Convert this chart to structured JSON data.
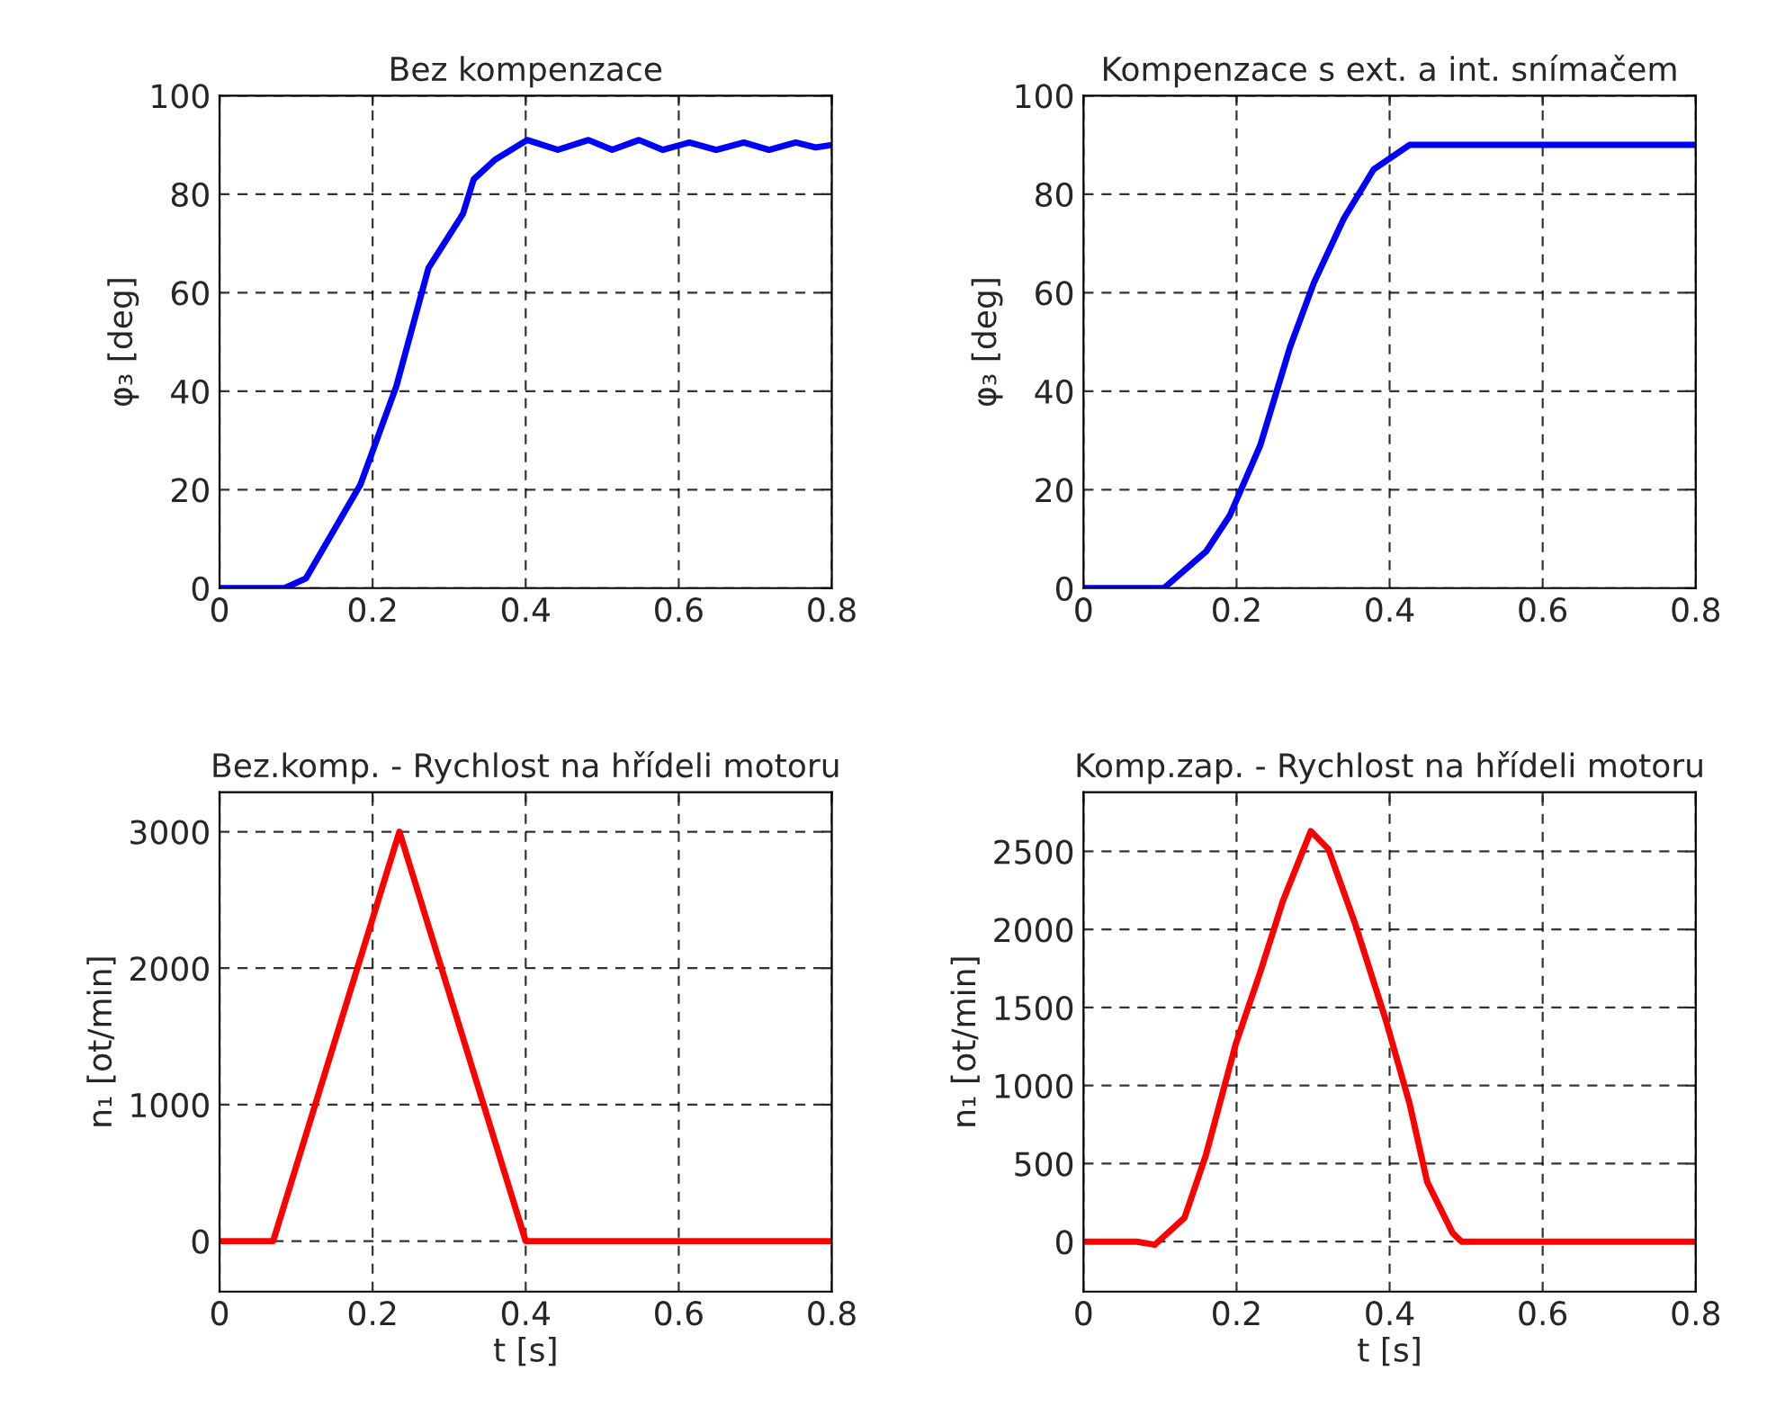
{
  "chart_data": [
    {
      "type": "line",
      "title": "Bez kompenzace",
      "ylabel": "φ₃ [deg]",
      "xlim": [
        0,
        0.8
      ],
      "ylim": [
        0,
        100
      ],
      "xticks": [
        0,
        0.2,
        0.4,
        0.6,
        0.8
      ],
      "yticks": [
        0,
        20,
        40,
        60,
        80,
        100
      ],
      "grid": true,
      "line_style": "solid",
      "series": [
        {
          "color": "#0000ff",
          "x": [
            0,
            0.085,
            0.113,
            0.184,
            0.231,
            0.273,
            0.318,
            0.332,
            0.36,
            0.402,
            0.442,
            0.482,
            0.513,
            0.548,
            0.579,
            0.614,
            0.649,
            0.685,
            0.718,
            0.753,
            0.779,
            0.8
          ],
          "values": [
            0,
            0,
            2,
            21,
            41,
            65,
            76,
            83,
            87,
            91,
            89,
            91,
            89,
            91,
            89,
            90.5,
            89,
            90.5,
            89,
            90.5,
            89.5,
            90
          ]
        }
      ]
    },
    {
      "type": "line",
      "title": "Kompenzace s ext. a int. snímačem",
      "ylabel": "φ₃ [deg]",
      "xlim": [
        0,
        0.8
      ],
      "ylim": [
        0,
        100
      ],
      "xticks": [
        0,
        0.2,
        0.4,
        0.6,
        0.8
      ],
      "yticks": [
        0,
        20,
        40,
        60,
        80,
        100
      ],
      "grid": true,
      "line_style": "solid",
      "series": [
        {
          "color": "#0000ff",
          "x": [
            0,
            0.105,
            0.16,
            0.191,
            0.231,
            0.27,
            0.301,
            0.34,
            0.379,
            0.426,
            0.8
          ],
          "values": [
            0,
            0,
            7.4,
            14.7,
            29,
            49,
            62,
            75,
            85,
            90,
            90
          ]
        }
      ]
    },
    {
      "type": "line",
      "title": "Bez.komp. - Rychlost na hřídeli motoru",
      "xlabel": "t [s]",
      "ylabel": "n₁ [ot/min]",
      "xlim": [
        0,
        0.8
      ],
      "ylim": [
        -370,
        3290
      ],
      "xticks": [
        0,
        0.2,
        0.4,
        0.6,
        0.8
      ],
      "yticks": [
        0,
        1000,
        2000,
        3000
      ],
      "grid": true,
      "line_style": "solid",
      "series": [
        {
          "color": "#ff0000",
          "x": [
            0,
            0.07,
            0.235,
            0.4,
            0.8
          ],
          "values": [
            0,
            0,
            3000,
            0,
            0
          ]
        }
      ]
    },
    {
      "type": "line",
      "title": "Komp.zap. - Rychlost na hřídeli motoru",
      "xlabel": "t [s]",
      "ylabel": "n₁ [ot/min]",
      "xlim": [
        0,
        0.8
      ],
      "ylim": [
        -320,
        2880
      ],
      "xticks": [
        0,
        0.2,
        0.4,
        0.6,
        0.8
      ],
      "yticks": [
        0,
        500,
        1000,
        1500,
        2000,
        2500
      ],
      "grid": true,
      "line_style": "solid",
      "series": [
        {
          "color": "#ff0000",
          "x": [
            0,
            0.07,
            0.093,
            0.132,
            0.16,
            0.199,
            0.231,
            0.261,
            0.297,
            0.32,
            0.355,
            0.395,
            0.426,
            0.449,
            0.482,
            0.494,
            0.8
          ],
          "values": [
            0,
            0,
            -20,
            153,
            556,
            1267,
            1728,
            2189,
            2630,
            2515,
            2036,
            1420,
            886,
            384,
            58,
            0,
            0
          ]
        }
      ]
    }
  ]
}
